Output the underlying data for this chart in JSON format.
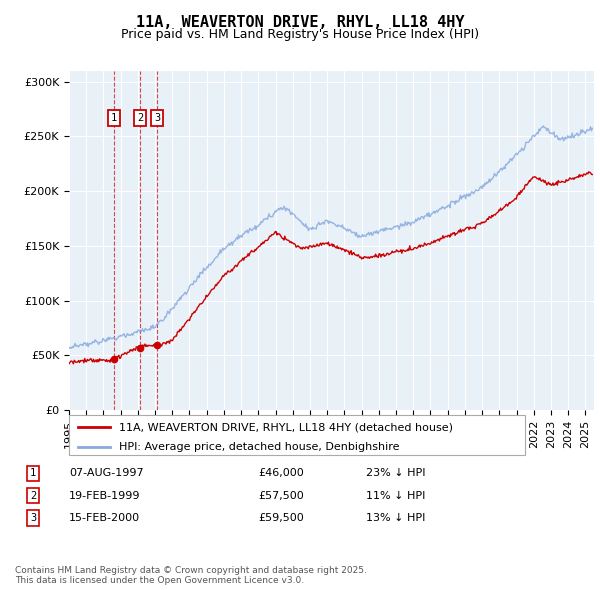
{
  "title": "11A, WEAVERTON DRIVE, RHYL, LL18 4HY",
  "subtitle": "Price paid vs. HM Land Registry's House Price Index (HPI)",
  "ylim": [
    0,
    310000
  ],
  "yticks": [
    0,
    50000,
    100000,
    150000,
    200000,
    250000,
    300000
  ],
  "ytick_labels": [
    "£0",
    "£50K",
    "£100K",
    "£150K",
    "£200K",
    "£250K",
    "£300K"
  ],
  "xlim_start": 1995.0,
  "xlim_end": 2025.5,
  "plot_bg_color": "#e8f0f8",
  "line_color_red": "#cc0000",
  "line_color_blue": "#88aadd",
  "transactions": [
    {
      "num": 1,
      "date": "07-AUG-1997",
      "price": 46000,
      "hpi_diff": "23% ↓ HPI",
      "x": 1997.6
    },
    {
      "num": 2,
      "date": "19-FEB-1999",
      "price": 57500,
      "hpi_diff": "11% ↓ HPI",
      "x": 1999.13
    },
    {
      "num": 3,
      "date": "15-FEB-2000",
      "price": 59500,
      "hpi_diff": "13% ↓ HPI",
      "x": 2000.13
    }
  ],
  "legend_entries": [
    "11A, WEAVERTON DRIVE, RHYL, LL18 4HY (detached house)",
    "HPI: Average price, detached house, Denbighshire"
  ],
  "footer": "Contains HM Land Registry data © Crown copyright and database right 2025.\nThis data is licensed under the Open Government Licence v3.0.",
  "title_fontsize": 11,
  "subtitle_fontsize": 9,
  "tick_fontsize": 8,
  "legend_fontsize": 8,
  "footer_fontsize": 6.5
}
